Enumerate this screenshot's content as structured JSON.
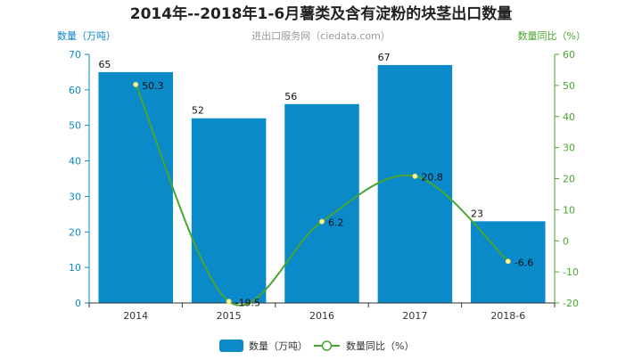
{
  "chart_data": {
    "type": "bar",
    "title": "2014年--2018年1-6月薯类及含有淀粉的块茎出口数量",
    "subtitle": "进出口服务网（ciedata.com）",
    "categories": [
      "2014",
      "2015",
      "2016",
      "2017",
      "2018-6"
    ],
    "series": [
      {
        "name": "数量（万吨）",
        "type": "bar",
        "axis": "left",
        "color": "#0a8ac9",
        "values": [
          65,
          52,
          56,
          67,
          23
        ],
        "labels": [
          "65",
          "52",
          "56",
          "67",
          "23"
        ]
      },
      {
        "name": "数量同比（%）",
        "type": "line",
        "axis": "right",
        "color": "#49a52f",
        "values": [
          50.3,
          -19.5,
          6.2,
          20.8,
          -6.6
        ],
        "labels": [
          "50.3",
          "-19.5",
          "6.2",
          "20.8",
          "-6.6"
        ]
      }
    ],
    "ylabel": "数量（万吨）",
    "y2label": "数量同比（%）",
    "ylim": [
      0,
      70
    ],
    "y2lim": [
      -20,
      60
    ],
    "yticks": [
      "0",
      "10",
      "20",
      "30",
      "40",
      "50",
      "60",
      "70"
    ],
    "y2ticks": [
      "-20",
      "-10",
      "0",
      "10",
      "20",
      "30",
      "40",
      "50",
      "60"
    ],
    "legend": {
      "position": "bottom"
    },
    "grid": false
  }
}
